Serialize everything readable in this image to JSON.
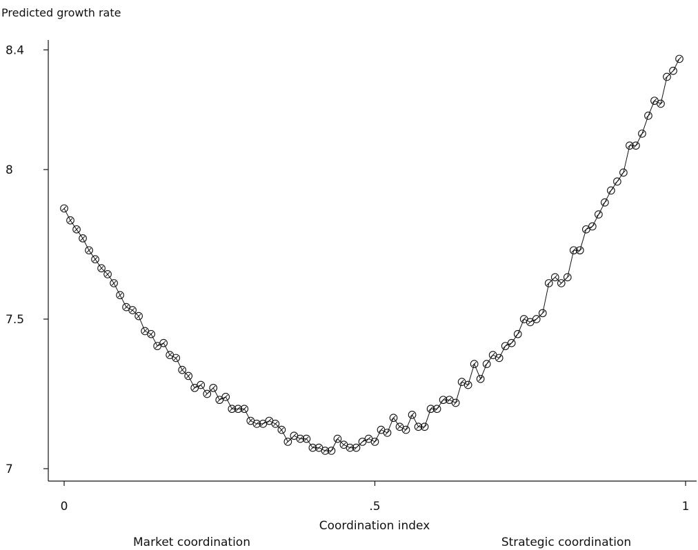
{
  "chart_data": {
    "type": "scatter",
    "connected": true,
    "marker": "hollow-circle",
    "xlabel": "Coordination index",
    "ylabel": "Predicted growth rate",
    "x_annotations": {
      "left": "Market coordination",
      "right": "Strategic coordination"
    },
    "xlim": [
      0,
      1
    ],
    "ylim": [
      6.97,
      8.44
    ],
    "x_ticks": [
      0,
      0.5,
      1
    ],
    "x_tick_labels": [
      "0",
      ".5",
      "1"
    ],
    "y_ticks": [
      7,
      7.5,
      8,
      8.4
    ],
    "y_tick_labels": [
      "7",
      "7.5",
      "8",
      "8.4"
    ],
    "grid": false,
    "colors": {
      "ink": "#111111",
      "background": "#ffffff"
    },
    "series": [
      {
        "x": [
          0,
          0.01,
          0.02,
          0.03,
          0.04,
          0.05,
          0.06,
          0.07,
          0.08,
          0.09,
          0.1,
          0.11,
          0.12,
          0.13,
          0.14,
          0.15,
          0.16,
          0.17,
          0.18,
          0.19,
          0.2,
          0.21,
          0.22,
          0.23,
          0.24,
          0.25,
          0.26,
          0.27,
          0.28,
          0.29,
          0.3,
          0.31,
          0.32,
          0.33,
          0.34,
          0.35,
          0.36,
          0.37,
          0.38,
          0.39,
          0.4,
          0.41,
          0.42,
          0.43,
          0.44,
          0.45,
          0.46,
          0.47,
          0.48,
          0.49,
          0.5,
          0.51,
          0.52,
          0.53,
          0.54,
          0.55,
          0.56,
          0.57,
          0.58,
          0.59,
          0.6,
          0.61,
          0.62,
          0.63,
          0.64,
          0.65,
          0.66,
          0.67,
          0.68,
          0.69,
          0.7,
          0.71,
          0.72,
          0.73,
          0.74,
          0.75,
          0.76,
          0.77,
          0.78,
          0.79,
          0.8,
          0.81,
          0.82,
          0.83,
          0.84,
          0.85,
          0.86,
          0.87,
          0.88,
          0.89,
          0.9,
          0.91,
          0.92,
          0.93,
          0.94,
          0.95,
          0.96,
          0.97,
          0.98,
          0.99
        ],
        "y": [
          7.87,
          7.83,
          7.8,
          7.77,
          7.73,
          7.7,
          7.67,
          7.65,
          7.62,
          7.58,
          7.54,
          7.53,
          7.51,
          7.46,
          7.45,
          7.41,
          7.42,
          7.38,
          7.37,
          7.33,
          7.31,
          7.27,
          7.28,
          7.25,
          7.27,
          7.23,
          7.24,
          7.2,
          7.2,
          7.2,
          7.16,
          7.15,
          7.15,
          7.16,
          7.15,
          7.13,
          7.09,
          7.11,
          7.1,
          7.1,
          7.07,
          7.07,
          7.06,
          7.06,
          7.1,
          7.08,
          7.07,
          7.07,
          7.09,
          7.1,
          7.09,
          7.13,
          7.12,
          7.17,
          7.14,
          7.13,
          7.18,
          7.14,
          7.14,
          7.2,
          7.2,
          7.23,
          7.23,
          7.22,
          7.29,
          7.28,
          7.35,
          7.3,
          7.35,
          7.38,
          7.37,
          7.41,
          7.42,
          7.45,
          7.5,
          7.49,
          7.5,
          7.52,
          7.62,
          7.64,
          7.62,
          7.64,
          7.73,
          7.73,
          7.8,
          7.81,
          7.85,
          7.89,
          7.93,
          7.96,
          7.99,
          8.08,
          8.08,
          8.12,
          8.18,
          8.23,
          8.22,
          8.31,
          8.33,
          8.37
        ]
      }
    ]
  }
}
